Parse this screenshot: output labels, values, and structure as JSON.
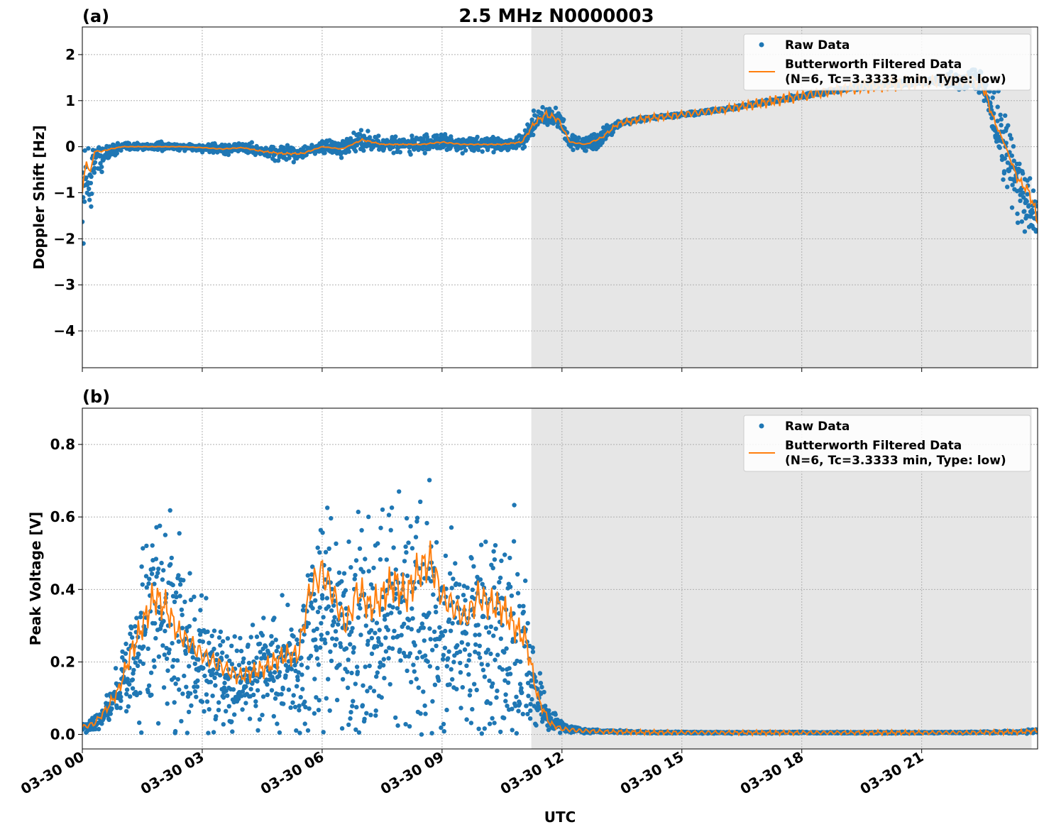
{
  "figure": {
    "title": "2.5 MHz N0000003",
    "xlabel": "UTC",
    "colors": {
      "raw": "#1f77b4",
      "filtered": "#ff7f0e",
      "night_shade": "#e6e6e6",
      "grid": "#b0b0b0"
    }
  },
  "chart_data": [
    {
      "type": "scatter",
      "panel_label": "(a)",
      "ylabel": "Doppler Shift [Hz]",
      "xlim": [
        "03-30 00:00",
        "03-30 23:54"
      ],
      "ylim": [
        -4.8,
        2.6
      ],
      "yticks": [
        -4,
        -3,
        -2,
        -1,
        0,
        1,
        2
      ],
      "ytick_labels": [
        "−4",
        "−3",
        "−2",
        "−1",
        "0",
        "1",
        "2"
      ],
      "xticks": [
        "03-30 00",
        "03-30 03",
        "03-30 06",
        "03-30 09",
        "03-30 12",
        "03-30 15",
        "03-30 18",
        "03-30 21"
      ],
      "grid": true,
      "legend_position": "top-right",
      "shaded_region": {
        "from": "03-30 11:14",
        "to": "03-30 23:45"
      },
      "series": [
        {
          "name": "Raw Data",
          "style": "dots",
          "x_hours": [
            0.0,
            0.1,
            0.2,
            0.3,
            0.5,
            0.7,
            1.0,
            1.5,
            2.0,
            2.5,
            3.0,
            3.5,
            4.0,
            4.5,
            5.0,
            5.5,
            6.0,
            6.5,
            7.0,
            7.5,
            8.0,
            8.5,
            9.0,
            9.5,
            10.0,
            10.5,
            11.0,
            11.3,
            11.6,
            11.9,
            12.2,
            12.6,
            13.0,
            13.4,
            14.0,
            15.0,
            16.0,
            17.0,
            18.0,
            19.0,
            20.0,
            21.0,
            22.0,
            22.5,
            22.8,
            23.1,
            23.4,
            23.7,
            23.9
          ],
          "y_center": [
            -1.5,
            -0.5,
            -0.8,
            -0.3,
            -0.2,
            -0.1,
            0.0,
            0.0,
            0.0,
            0.0,
            -0.02,
            -0.05,
            -0.02,
            -0.1,
            -0.15,
            -0.15,
            0.0,
            -0.05,
            0.15,
            0.05,
            0.05,
            0.05,
            0.1,
            0.05,
            0.05,
            0.05,
            0.1,
            0.5,
            0.7,
            0.6,
            0.1,
            0.05,
            0.2,
            0.5,
            0.6,
            0.7,
            0.8,
            0.95,
            1.1,
            1.25,
            1.35,
            1.4,
            1.45,
            1.4,
            0.6,
            0.0,
            -0.8,
            -1.3,
            -1.6
          ],
          "y_spread": [
            1.5,
            1.0,
            1.2,
            0.5,
            0.6,
            0.2,
            0.15,
            0.12,
            0.12,
            0.12,
            0.12,
            0.15,
            0.18,
            0.2,
            0.25,
            0.2,
            0.2,
            0.25,
            0.3,
            0.2,
            0.25,
            0.25,
            0.25,
            0.2,
            0.2,
            0.2,
            0.25,
            0.3,
            0.35,
            0.35,
            0.25,
            0.25,
            0.3,
            0.1,
            0.06,
            0.06,
            0.06,
            0.06,
            0.06,
            0.06,
            0.08,
            0.1,
            0.3,
            0.4,
            0.8,
            1.2,
            1.3,
            1.2,
            1.0
          ]
        },
        {
          "name": "Butterworth Filtered Data\n(N=6, Tc=3.3333 min, Type: low)",
          "style": "line",
          "x_hours": [
            0.0,
            0.1,
            0.2,
            0.3,
            0.5,
            0.7,
            1.0,
            1.5,
            2.0,
            2.5,
            3.0,
            3.5,
            4.0,
            4.5,
            5.0,
            5.5,
            6.0,
            6.5,
            7.0,
            7.5,
            8.0,
            8.5,
            9.0,
            9.5,
            10.0,
            10.5,
            11.0,
            11.3,
            11.6,
            11.9,
            12.2,
            12.6,
            13.0,
            13.4,
            14.0,
            15.0,
            16.0,
            17.0,
            18.0,
            19.0,
            20.0,
            21.0,
            22.0,
            22.5,
            22.8,
            23.1,
            23.4,
            23.7,
            23.9
          ],
          "y": [
            -1.0,
            -0.3,
            -0.6,
            -0.1,
            -0.1,
            -0.05,
            0.0,
            0.0,
            0.0,
            0.0,
            -0.02,
            -0.05,
            -0.02,
            -0.1,
            -0.15,
            -0.15,
            0.0,
            -0.05,
            0.15,
            0.05,
            0.05,
            0.05,
            0.1,
            0.05,
            0.05,
            0.05,
            0.1,
            0.5,
            0.7,
            0.6,
            0.1,
            0.05,
            0.2,
            0.5,
            0.6,
            0.7,
            0.8,
            0.95,
            1.1,
            1.25,
            1.35,
            1.4,
            1.45,
            1.4,
            0.6,
            0.0,
            -0.7,
            -1.0,
            -1.6
          ]
        }
      ]
    },
    {
      "type": "scatter",
      "panel_label": "(b)",
      "ylabel": "Peak Voltage [V]",
      "xlim": [
        "03-30 00:00",
        "03-30 23:54"
      ],
      "ylim": [
        -0.04,
        0.9
      ],
      "yticks": [
        0.0,
        0.2,
        0.4,
        0.6,
        0.8
      ],
      "ytick_labels": [
        "0.0",
        "0.2",
        "0.4",
        "0.6",
        "0.8"
      ],
      "xticks": [
        "03-30 00",
        "03-30 03",
        "03-30 06",
        "03-30 09",
        "03-30 12",
        "03-30 15",
        "03-30 18",
        "03-30 21"
      ],
      "grid": true,
      "legend_position": "top-right",
      "shaded_region": {
        "from": "03-30 11:14",
        "to": "03-30 23:45"
      },
      "series": [
        {
          "name": "Raw Data",
          "style": "dots",
          "x_hours": [
            0.0,
            0.3,
            0.6,
            0.9,
            1.2,
            1.5,
            1.8,
            2.1,
            2.4,
            2.7,
            3.0,
            3.3,
            3.6,
            3.9,
            4.2,
            4.5,
            4.8,
            5.1,
            5.4,
            5.7,
            6.0,
            6.3,
            6.6,
            6.9,
            7.2,
            7.5,
            7.8,
            8.1,
            8.4,
            8.7,
            9.0,
            9.3,
            9.6,
            9.9,
            10.2,
            10.5,
            10.8,
            11.1,
            11.4,
            11.7,
            12.0,
            12.5,
            13.0,
            14.0,
            16.0,
            18.0,
            20.0,
            22.0,
            23.5,
            23.9
          ],
          "y_center": [
            0.02,
            0.03,
            0.06,
            0.12,
            0.2,
            0.25,
            0.3,
            0.32,
            0.25,
            0.22,
            0.2,
            0.18,
            0.16,
            0.15,
            0.16,
            0.17,
            0.18,
            0.2,
            0.2,
            0.3,
            0.35,
            0.3,
            0.25,
            0.3,
            0.28,
            0.3,
            0.32,
            0.3,
            0.32,
            0.35,
            0.3,
            0.28,
            0.26,
            0.3,
            0.28,
            0.25,
            0.22,
            0.2,
            0.1,
            0.04,
            0.02,
            0.01,
            0.008,
            0.006,
            0.005,
            0.005,
            0.005,
            0.005,
            0.007,
            0.01
          ],
          "y_spread": [
            0.02,
            0.03,
            0.06,
            0.12,
            0.2,
            0.3,
            0.4,
            0.45,
            0.4,
            0.3,
            0.3,
            0.25,
            0.22,
            0.2,
            0.22,
            0.22,
            0.22,
            0.22,
            0.25,
            0.45,
            0.5,
            0.45,
            0.4,
            0.45,
            0.45,
            0.45,
            0.5,
            0.5,
            0.5,
            0.5,
            0.45,
            0.4,
            0.4,
            0.45,
            0.45,
            0.45,
            0.45,
            0.35,
            0.15,
            0.05,
            0.02,
            0.01,
            0.005,
            0.004,
            0.003,
            0.003,
            0.003,
            0.003,
            0.005,
            0.01
          ]
        },
        {
          "name": "Butterworth Filtered Data\n(N=6, Tc=3.3333 min, Type: low)",
          "style": "line",
          "x_hours": [
            0.0,
            0.3,
            0.6,
            0.9,
            1.2,
            1.5,
            1.8,
            2.1,
            2.4,
            2.7,
            3.0,
            3.3,
            3.6,
            3.9,
            4.2,
            4.5,
            4.8,
            5.1,
            5.4,
            5.7,
            6.0,
            6.3,
            6.6,
            6.9,
            7.2,
            7.5,
            7.8,
            8.1,
            8.4,
            8.7,
            9.0,
            9.3,
            9.6,
            9.9,
            10.2,
            10.5,
            10.8,
            11.1,
            11.4,
            11.7,
            12.0,
            12.5,
            13.0,
            14.0,
            16.0,
            18.0,
            20.0,
            22.0,
            23.5,
            23.9
          ],
          "y": [
            0.02,
            0.03,
            0.07,
            0.12,
            0.22,
            0.3,
            0.38,
            0.35,
            0.28,
            0.25,
            0.22,
            0.2,
            0.18,
            0.16,
            0.17,
            0.18,
            0.2,
            0.22,
            0.22,
            0.4,
            0.45,
            0.38,
            0.3,
            0.4,
            0.35,
            0.38,
            0.42,
            0.38,
            0.45,
            0.48,
            0.38,
            0.35,
            0.32,
            0.38,
            0.36,
            0.35,
            0.3,
            0.26,
            0.1,
            0.03,
            0.015,
            0.01,
            0.008,
            0.006,
            0.005,
            0.005,
            0.005,
            0.005,
            0.007,
            0.01
          ]
        }
      ]
    }
  ]
}
